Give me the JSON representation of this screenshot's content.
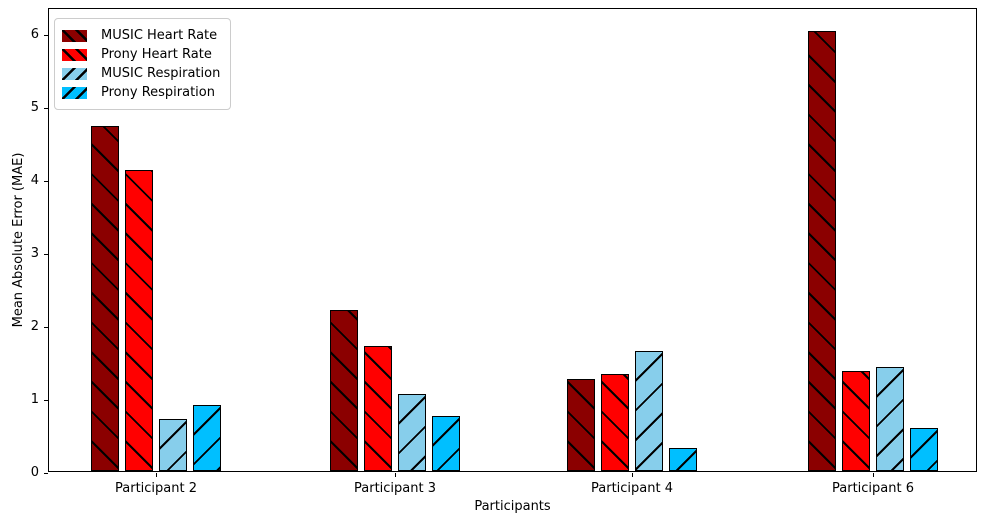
{
  "chart_data": {
    "type": "bar",
    "title": "",
    "xlabel": "Participants",
    "ylabel": "Mean Absolute Error (MAE)",
    "categories": [
      "Participant 2",
      "Participant 3",
      "Participant 4",
      "Participant 6"
    ],
    "series": [
      {
        "name": "MUSIC Heart Rate",
        "color": "#8B0000",
        "hatch": "backslash",
        "values": [
          4.73,
          2.21,
          1.26,
          6.03
        ]
      },
      {
        "name": "Prony Heart Rate",
        "color": "#FF0000",
        "hatch": "backslash",
        "values": [
          4.12,
          1.71,
          1.33,
          1.37
        ]
      },
      {
        "name": "MUSIC Respiration",
        "color": "#87CEEB",
        "hatch": "slash",
        "values": [
          0.71,
          1.05,
          1.65,
          1.43
        ]
      },
      {
        "name": "Prony Respiration",
        "color": "#00BFFF",
        "hatch": "slash",
        "values": [
          0.9,
          0.75,
          0.32,
          0.59
        ]
      }
    ],
    "ylim": [
      0,
      6.36
    ],
    "yticks": [
      "0",
      "1",
      "2",
      "3",
      "4",
      "5",
      "6"
    ],
    "grid": false,
    "legend_position": "upper left",
    "hatch_color": "#000000",
    "spine_color": "#000000",
    "background_color": "#ffffff"
  }
}
